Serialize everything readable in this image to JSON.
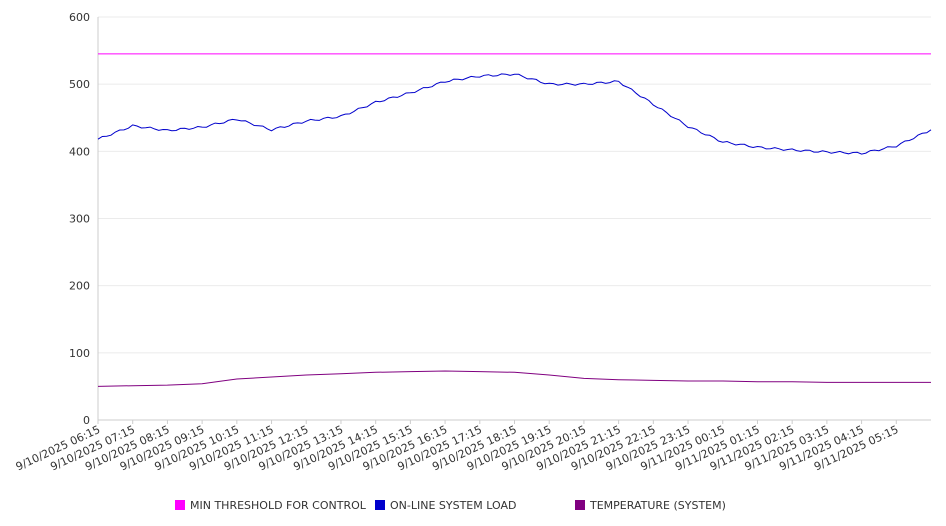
{
  "chart_data": {
    "type": "line",
    "title": "",
    "xlabel": "",
    "ylabel": "",
    "ylim": [
      0,
      600
    ],
    "yticks": [
      "0",
      "100",
      "200",
      "300",
      "400",
      "500",
      "600"
    ],
    "xticks": [
      "9/10/2025 06:15",
      "9/10/2025 07:15",
      "9/10/2025 08:15",
      "9/10/2025 09:15",
      "9/10/2025 10:15",
      "9/10/2025 11:15",
      "9/10/2025 12:15",
      "9/10/2025 13:15",
      "9/10/2025 14:15",
      "9/10/2025 15:15",
      "9/10/2025 16:15",
      "9/10/2025 17:15",
      "9/10/2025 18:15",
      "9/10/2025 19:15",
      "9/10/2025 20:15",
      "9/10/2025 21:15",
      "9/10/2025 22:15",
      "9/10/2025 23:15",
      "9/11/2025 00:15",
      "9/11/2025 01:15",
      "9/11/2025 02:15",
      "9/11/2025 03:15",
      "9/11/2025 04:15",
      "9/11/2025 05:15"
    ],
    "x": [
      "9/10/2025 06:15",
      "9/10/2025 07:15",
      "9/10/2025 08:15",
      "9/10/2025 09:15",
      "9/10/2025 10:15",
      "9/10/2025 11:15",
      "9/10/2025 12:15",
      "9/10/2025 13:15",
      "9/10/2025 14:15",
      "9/10/2025 15:15",
      "9/10/2025 16:15",
      "9/10/2025 17:15",
      "9/10/2025 18:15",
      "9/10/2025 19:15",
      "9/10/2025 20:15",
      "9/10/2025 21:15",
      "9/10/2025 22:15",
      "9/10/2025 23:15",
      "9/11/2025 00:15",
      "9/11/2025 01:15",
      "9/11/2025 02:15",
      "9/11/2025 03:15",
      "9/11/2025 04:15",
      "9/11/2025 05:15",
      "9/11/2025 06:15"
    ],
    "series": [
      {
        "name": "MIN THRESHOLD FOR CONTROL",
        "color": "#ff00ff",
        "values": [
          545,
          545,
          545,
          545,
          545,
          545,
          545,
          545,
          545,
          545,
          545,
          545,
          545,
          545,
          545,
          545,
          545,
          545,
          545,
          545,
          545,
          545,
          545,
          545,
          545
        ]
      },
      {
        "name": "ON-LINE SYSTEM LOAD",
        "color": "#0000cc",
        "values": [
          418,
          438,
          431,
          436,
          448,
          432,
          445,
          452,
          473,
          487,
          504,
          512,
          515,
          500,
          500,
          504,
          470,
          437,
          414,
          406,
          402,
          399,
          397,
          408,
          432
        ]
      },
      {
        "name": "TEMPERATURE (SYSTEM)",
        "color": "#800080",
        "values": [
          50,
          51,
          52,
          54,
          61,
          64,
          67,
          69,
          71,
          72,
          73,
          72,
          71,
          67,
          62,
          60,
          59,
          58,
          58,
          57,
          57,
          56,
          56,
          56,
          56
        ]
      }
    ],
    "grid": true,
    "legend_position": "bottom"
  }
}
